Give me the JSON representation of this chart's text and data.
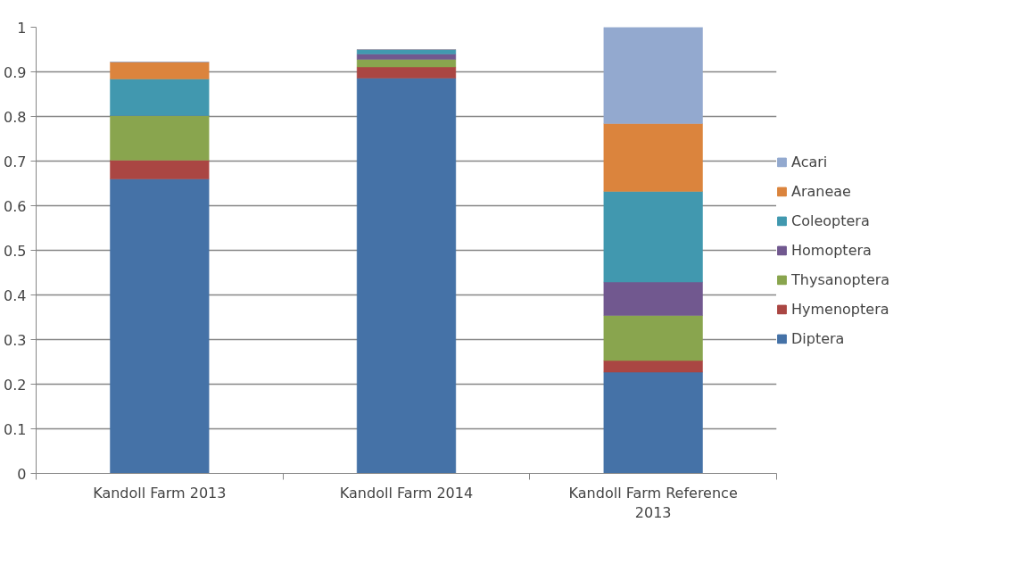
{
  "chart_data": {
    "type": "bar",
    "stacked": true,
    "categories": [
      "Kandoll Farm 2013",
      "Kandoll Farm 2014",
      "Kandoll Farm Reference 2013"
    ],
    "series": [
      {
        "name": "Diptera",
        "color": "#4572a7",
        "values": [
          0.66,
          0.886,
          0.227
        ]
      },
      {
        "name": "Hymenoptera",
        "color": "#aa4643",
        "values": [
          0.042,
          0.025,
          0.026
        ]
      },
      {
        "name": "Thysanoptera",
        "color": "#89a54e",
        "values": [
          0.1,
          0.017,
          0.101
        ]
      },
      {
        "name": "Homoptera",
        "color": "#71588f",
        "values": [
          0,
          0.012,
          0.075
        ]
      },
      {
        "name": "Coleoptera",
        "color": "#4198af",
        "values": [
          0.082,
          0.01,
          0.203
        ]
      },
      {
        "name": "Araneae",
        "color": "#db843d",
        "values": [
          0.038,
          0,
          0.152
        ]
      },
      {
        "name": "Acari",
        "color": "#93a9cf",
        "values": [
          0,
          0,
          0.216
        ]
      }
    ],
    "ylim": [
      0,
      1
    ],
    "yticks": [
      0,
      0.1,
      0.2,
      0.3,
      0.4,
      0.5,
      0.6,
      0.7,
      0.8,
      0.9,
      1
    ],
    "grid": "y",
    "legend": "right"
  }
}
